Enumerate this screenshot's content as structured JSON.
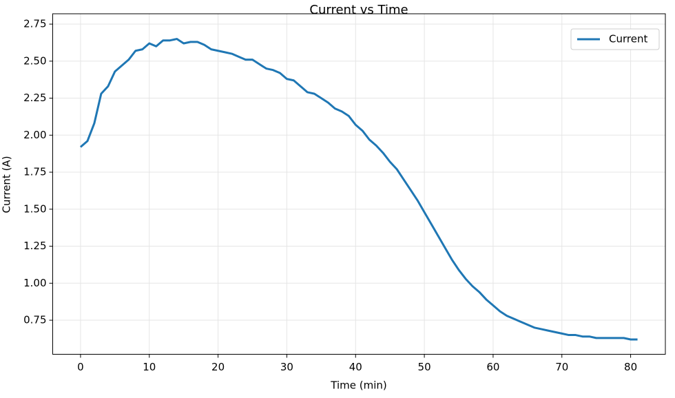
{
  "chart_data": {
    "type": "line",
    "title": "Current vs Time",
    "x_label": "Time (min)",
    "y_label": "Current (A)",
    "x": [
      0,
      1,
      2,
      3,
      4,
      5,
      6,
      7,
      8,
      9,
      10,
      11,
      12,
      13,
      14,
      15,
      16,
      17,
      18,
      19,
      20,
      21,
      22,
      23,
      24,
      25,
      26,
      27,
      28,
      29,
      30,
      31,
      32,
      33,
      34,
      35,
      36,
      37,
      38,
      39,
      40,
      41,
      42,
      43,
      44,
      45,
      46,
      47,
      48,
      49,
      50,
      51,
      52,
      53,
      54,
      55,
      56,
      57,
      58,
      59,
      60,
      61,
      62,
      63,
      64,
      65,
      66,
      67,
      68,
      69,
      70,
      71,
      72,
      73,
      74,
      75,
      76,
      77,
      78,
      79,
      80,
      81
    ],
    "series": [
      {
        "name": "Current",
        "color": "#1f77b4",
        "values": [
          1.92,
          1.96,
          2.08,
          2.28,
          2.33,
          2.43,
          2.47,
          2.51,
          2.57,
          2.58,
          2.62,
          2.6,
          2.64,
          2.64,
          2.65,
          2.62,
          2.63,
          2.63,
          2.61,
          2.58,
          2.57,
          2.56,
          2.55,
          2.53,
          2.51,
          2.51,
          2.48,
          2.45,
          2.44,
          2.42,
          2.38,
          2.37,
          2.33,
          2.29,
          2.28,
          2.25,
          2.22,
          2.18,
          2.16,
          2.13,
          2.07,
          2.03,
          1.97,
          1.93,
          1.88,
          1.82,
          1.77,
          1.7,
          1.63,
          1.56,
          1.48,
          1.4,
          1.32,
          1.24,
          1.16,
          1.09,
          1.03,
          0.98,
          0.94,
          0.89,
          0.85,
          0.81,
          0.78,
          0.76,
          0.74,
          0.72,
          0.7,
          0.69,
          0.68,
          0.67,
          0.66,
          0.65,
          0.65,
          0.64,
          0.64,
          0.63,
          0.63,
          0.63,
          0.63,
          0.63,
          0.62,
          0.62
        ]
      }
    ],
    "xlim": [
      -4.05,
      85.05
    ],
    "ylim": [
      0.52,
      2.82
    ],
    "xticks": [
      0,
      10,
      20,
      30,
      40,
      50,
      60,
      70,
      80
    ],
    "yticks": [
      0.75,
      {
        "value": 1,
        "label": "1.00"
      },
      1.25,
      {
        "value": 1.5,
        "label": "1.50"
      },
      1.75,
      {
        "value": 2,
        "label": "2.00"
      },
      2.25,
      {
        "value": 2.5,
        "label": "2.50"
      },
      2.75
    ],
    "grid": true,
    "legend": "upper right"
  }
}
